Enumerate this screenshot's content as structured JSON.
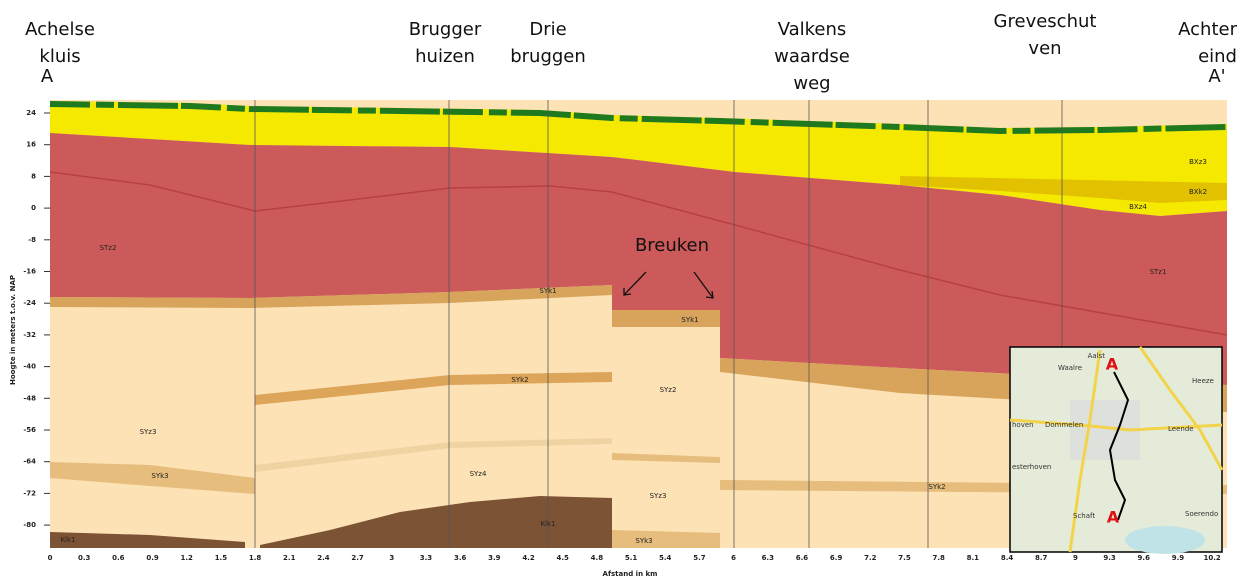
{
  "places": [
    [
      "Achelse",
      "kluis"
    ],
    [
      "Brugger",
      "huizen"
    ],
    [
      "Drie",
      "bruggen"
    ],
    [
      "Valkens",
      "waardse",
      "weg"
    ],
    [
      "Greveschut",
      "ven"
    ],
    [
      "Achter",
      "eind"
    ]
  ],
  "section_ends": [
    "A",
    "A'"
  ],
  "annotation": "Breuken",
  "y_axis": {
    "title": "Hoogte in meters t.o.v. NAP",
    "ticks": [
      24,
      16,
      8,
      0,
      -8,
      -16,
      -24,
      -32,
      -40,
      -48,
      -56,
      -64,
      -72,
      -80
    ]
  },
  "x_axis": {
    "title": "Afstand in km",
    "ticks": [
      0,
      0.3,
      0.6,
      0.9,
      1.2,
      1.5,
      1.8,
      2.1,
      2.4,
      2.7,
      3,
      3.3,
      3.6,
      3.9,
      4.2,
      4.5,
      4.8,
      5.1,
      5.4,
      5.7,
      6,
      6.3,
      6.6,
      6.9,
      7.2,
      7.5,
      7.8,
      8.1,
      8.4,
      8.7,
      9,
      9.3,
      9.6,
      9.9,
      10.2
    ]
  },
  "layers": [
    "STz2",
    "SYk1",
    "SYk1",
    "SYk2",
    "SYz2",
    "SYz3",
    "SYk3",
    "SYz4",
    "SYz3",
    "Klk1",
    "SYk3",
    "Klk1",
    "SYk2",
    "STz1",
    "BXz3",
    "BXk2",
    "BXz4"
  ],
  "map": {
    "labels": [
      "Aalst",
      "Waalre",
      "Heeze",
      "Dommelen",
      "hoven",
      "Leende",
      "esterhoven",
      "Schaft",
      "Soerendo"
    ],
    "markers": [
      "A",
      "A"
    ]
  }
}
